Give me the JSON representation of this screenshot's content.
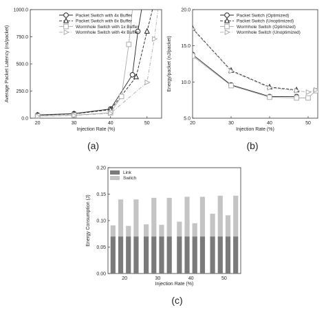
{
  "chart_data": [
    {
      "id": "a",
      "caption": "(a)",
      "type": "line",
      "xlabel": "Injection Rate (%)",
      "ylabel": "Average Packet Latency (ns/packet)",
      "xlim": [
        18,
        54
      ],
      "ylim": [
        0,
        1000
      ],
      "xticks": [
        20,
        30,
        40,
        50
      ],
      "yticks": [
        0,
        250,
        500,
        750,
        1000
      ],
      "ytick_labels": [
        "0.0",
        "250.0",
        "500.0",
        "750.0",
        "1000.0"
      ],
      "legend_position": "top-right",
      "series": [
        {
          "name": "Packet Switch with 4x Buffer",
          "marker": "circle",
          "dash": "solid",
          "color": "#222222",
          "x": [
            20,
            30,
            40,
            46,
            47.5,
            48.5
          ],
          "y": [
            30,
            42,
            85,
            400,
            800,
            1000
          ]
        },
        {
          "name": "Packet Switch with 8x Buffer",
          "marker": "triangle-up",
          "dash": "dash",
          "color": "#222222",
          "x": [
            20,
            30,
            40,
            47,
            50,
            51.5
          ],
          "y": [
            28,
            40,
            78,
            380,
            800,
            1000
          ]
        },
        {
          "name": "Wormhole Switch with 1x Buffer",
          "marker": "square",
          "dash": "solid",
          "color": "#aaaaaa",
          "x": [
            20,
            30,
            40,
            43,
            45,
            46
          ],
          "y": [
            20,
            28,
            50,
            200,
            680,
            1000
          ]
        },
        {
          "name": "Wormhole Switch with 4x Buffer",
          "marker": "triangle-right",
          "dash": "dashdot",
          "color": "#aaaaaa",
          "x": [
            20,
            30,
            40,
            50,
            52,
            53
          ],
          "y": [
            18,
            25,
            45,
            330,
            730,
            1000
          ]
        }
      ]
    },
    {
      "id": "b",
      "caption": "(b)",
      "type": "line",
      "xlabel": "Injection Rate (%)",
      "ylabel": "Energy/packet (nJ/packet)",
      "xlim": [
        20,
        52.5
      ],
      "ylim": [
        5,
        20
      ],
      "xticks": [
        20,
        30,
        40,
        50
      ],
      "yticks": [
        5,
        10,
        15,
        20
      ],
      "ytick_labels": [
        "5.0",
        "10.0",
        "15.0",
        "20.0"
      ],
      "legend_position": "top-right",
      "series": [
        {
          "name": "Packet Switch (Optimized)",
          "marker": "circle",
          "dash": "solid",
          "color": "#222222",
          "x": [
            20,
            30,
            40,
            47
          ],
          "y": [
            13.8,
            9.6,
            8.0,
            8.0
          ]
        },
        {
          "name": "Packet Switch (Unoptimized)",
          "marker": "triangle-up",
          "dash": "dash",
          "color": "#222222",
          "x": [
            20,
            30,
            40,
            47
          ],
          "y": [
            17.4,
            11.6,
            9.3,
            8.9
          ]
        },
        {
          "name": "Wormhole Switch (Optimized)",
          "marker": "square",
          "dash": "solid",
          "color": "#aaaaaa",
          "x": [
            20,
            30,
            40,
            47,
            50,
            52
          ],
          "y": [
            13.6,
            9.5,
            7.9,
            7.8,
            7.8,
            8.8
          ]
        },
        {
          "name": "Wormhole Switch (Unoptimized)",
          "marker": "triangle-right",
          "dash": "dashdot",
          "color": "#aaaaaa",
          "x": [
            20,
            30,
            40,
            47,
            50,
            52
          ],
          "y": [
            17.3,
            11.5,
            9.2,
            8.8,
            8.6,
            8.9
          ]
        }
      ]
    },
    {
      "id": "c",
      "caption": "(c)",
      "type": "bar",
      "stacked": true,
      "xlabel": "Injection Rate (%)",
      "ylabel": "Energy Consumption (J)",
      "ylim": [
        0,
        0.2
      ],
      "yticks": [
        0,
        0.05,
        0.1,
        0.15,
        0.2
      ],
      "ytick_labels": [
        "0.00",
        "0.05",
        "0.10",
        "0.15",
        "0.20"
      ],
      "categories": [
        "20",
        "30",
        "40",
        "50"
      ],
      "bars_per_group": 4,
      "legend_position": "top-left",
      "series": [
        {
          "name": "Link",
          "color": "#7a7a7a",
          "values": [
            [
              0.07,
              0.07,
              0.07,
              0.07
            ],
            [
              0.07,
              0.07,
              0.07,
              0.07
            ],
            [
              0.07,
              0.07,
              0.07,
              0.07
            ],
            [
              0.07,
              0.07,
              0.07,
              0.07
            ]
          ]
        },
        {
          "name": "Switch",
          "color": "#c4c4c4",
          "values": [
            [
              0.021,
              0.07,
              0.02,
              0.07
            ],
            [
              0.023,
              0.073,
              0.022,
              0.073
            ],
            [
              0.028,
              0.075,
              0.025,
              0.075
            ],
            [
              0.043,
              0.077,
              0.04,
              0.077
            ]
          ]
        }
      ]
    }
  ]
}
